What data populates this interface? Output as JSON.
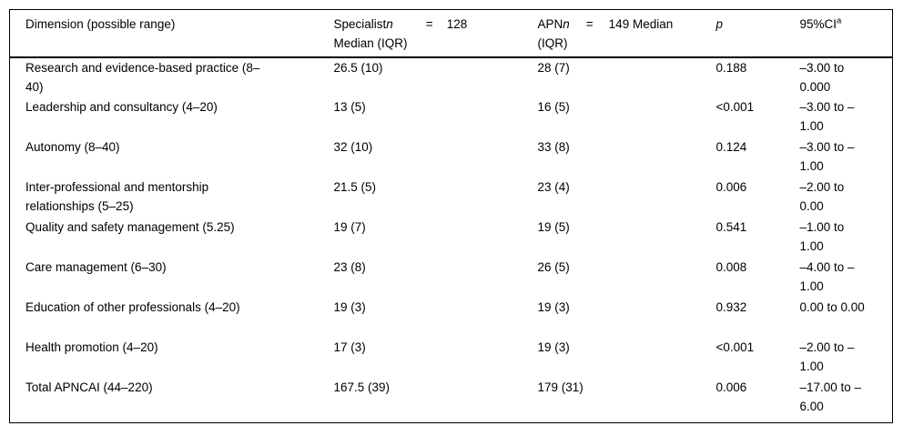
{
  "table": {
    "header": {
      "dimension": "Dimension (possible range)",
      "specialist": {
        "name": "Specialist",
        "n_symbol": "n",
        "equals": "=",
        "count": "128",
        "line2": "Median (IQR)"
      },
      "apn": {
        "name": "APN",
        "n_symbol": "n",
        "equals": "=",
        "count_and_median": "149 Median",
        "line2": "(IQR)"
      },
      "p": "p",
      "ci": {
        "label": "95%CI",
        "superscript": "a"
      }
    },
    "rows": [
      {
        "dimension": "Research and evidence-based practice (8–40)",
        "specialist": "26.5 (10)",
        "apn": "28 (7)",
        "p": "0.188",
        "ci": "–3.00 to 0.000"
      },
      {
        "dimension": "Leadership and consultancy (4–20)",
        "specialist": "13 (5)",
        "apn": "16 (5)",
        "p": "<0.001",
        "ci": "–3.00 to –1.00"
      },
      {
        "dimension": "Autonomy (8–40)",
        "specialist": "32 (10)",
        "apn": "33 (8)",
        "p": "0.124",
        "ci": "–3.00 to –1.00"
      },
      {
        "dimension": "Inter-professional and mentorship relationships (5–25)",
        "specialist": "21.5 (5)",
        "apn": "23 (4)",
        "p": "0.006",
        "ci": "–2.00 to 0.00"
      },
      {
        "dimension": "Quality and safety management (5.25)",
        "specialist": "19 (7)",
        "apn": "19 (5)",
        "p": "0.541",
        "ci": "–1.00 to 1.00"
      },
      {
        "dimension": "Care management (6–30)",
        "specialist": "23 (8)",
        "apn": "26 (5)",
        "p": "0.008",
        "ci": "–4.00 to –1.00"
      },
      {
        "dimension": "Education of other professionals (4–20)",
        "specialist": "19 (3)",
        "apn": "19 (3)",
        "p": "0.932",
        "ci": "0.00 to 0.00"
      },
      {
        "dimension": "Health promotion (4–20)",
        "specialist": "17 (3)",
        "apn": "19 (3)",
        "p": "<0.001",
        "ci": "–2.00 to –1.00"
      },
      {
        "dimension": "Total APNCAI (44–220)",
        "specialist": "167.5 (39)",
        "apn": "179 (31)",
        "p": "0.006",
        "ci": "–17.00 to –6.00"
      }
    ]
  }
}
